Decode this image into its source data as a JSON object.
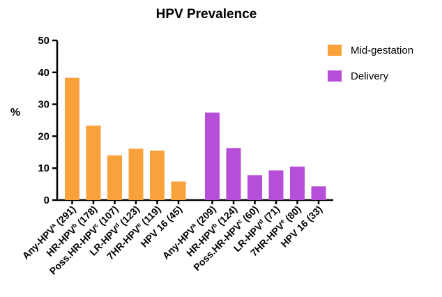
{
  "chart_data": {
    "type": "bar",
    "title": "HPV Prevalence",
    "xlabel": "",
    "ylabel": "%",
    "ylim": [
      0,
      50
    ],
    "yticks": [
      0,
      10,
      20,
      30,
      40,
      50
    ],
    "grid": false,
    "legend_position": "top-right",
    "series": [
      {
        "name": "Mid-gestation",
        "color": "#F9A23B",
        "categories": [
          {
            "label": "Any-HPV",
            "sup": "a",
            "n": "(291)"
          },
          {
            "label": "HR-HPV",
            "sup": "b",
            "n": "(178)"
          },
          {
            "label": "Poss.HR-HPV",
            "sup": "c",
            "n": "(107)"
          },
          {
            "label": "LR-HPV",
            "sup": "d",
            "n": "(123)"
          },
          {
            "label": "7HR-HPV",
            "sup": "e",
            "n": "(119)"
          },
          {
            "label": "HPV 16",
            "sup": "",
            "n": "(45)"
          }
        ],
        "values": [
          38.3,
          23.3,
          14.0,
          16.1,
          15.5,
          5.8
        ]
      },
      {
        "name": "Delivery",
        "color": "#B54FD8",
        "categories": [
          {
            "label": "Any-HPV",
            "sup": "a",
            "n": "(209)"
          },
          {
            "label": "HR-HPV",
            "sup": "b",
            "n": "(124)"
          },
          {
            "label": "Poss.HR-HPV",
            "sup": "c",
            "n": "(60)"
          },
          {
            "label": "LR-HPV",
            "sup": "d",
            "n": "(71)"
          },
          {
            "label": "7HR-HPV",
            "sup": "e",
            "n": "(80)"
          },
          {
            "label": "HPV 16",
            "sup": "",
            "n": "(33)"
          }
        ],
        "values": [
          27.4,
          16.3,
          7.8,
          9.3,
          10.5,
          4.3
        ]
      }
    ]
  }
}
